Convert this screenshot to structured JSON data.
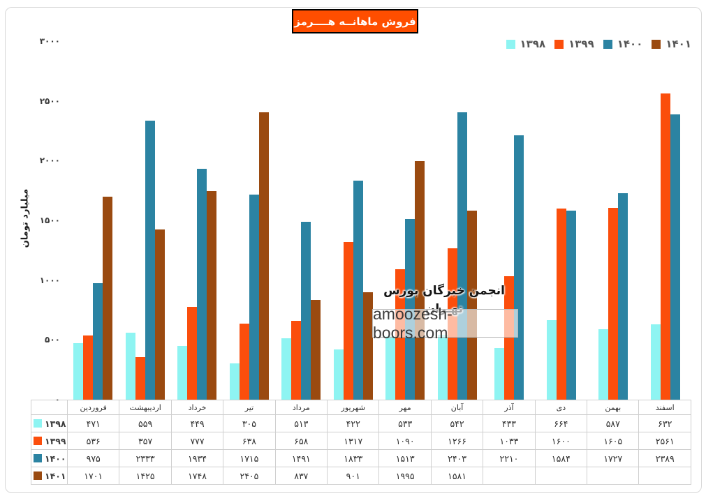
{
  "title": "فروش ماهانــه هــــرمز",
  "watermark": {
    "line1": "انجمن خبرگان بورس تهـران",
    "domain": "amoozesh-boors.com"
  },
  "y_axis": {
    "title": "میلیارد تومان"
  },
  "colors": {
    "title_bg": "#FF4E00",
    "series_1398": "#8EF4F2",
    "series_1399": "#FB4E0C",
    "series_1400": "#2B83A2",
    "series_1401": "#9A4A10",
    "table_border": "#cfcfcf"
  },
  "digits": "persian",
  "chart_data": {
    "type": "bar",
    "title": "فروش ماهانــه هــــرمز",
    "xlabel": "",
    "ylabel": "میلیارد تومان",
    "ylim": [
      0,
      3000
    ],
    "yticks": [
      0,
      500,
      1000,
      1500,
      2000,
      2500,
      3000
    ],
    "grid": false,
    "legend_position": "top-right",
    "categories": [
      "فروردین",
      "اردیبهشت",
      "خرداد",
      "تیر",
      "مرداد",
      "شهریور",
      "مهر",
      "آبان",
      "آذر",
      "دی",
      "بهمن",
      "اسفند"
    ],
    "series": [
      {
        "name": "1398",
        "color": "#8EF4F2",
        "values": [
          471,
          559,
          449,
          305,
          513,
          422,
          533,
          542,
          433,
          664,
          587,
          632
        ]
      },
      {
        "name": "1399",
        "color": "#FB4E0C",
        "values": [
          536,
          357,
          777,
          638,
          658,
          1317,
          1090,
          1266,
          1033,
          1600,
          1605,
          2561
        ]
      },
      {
        "name": "1400",
        "color": "#2B83A2",
        "values": [
          975,
          2333,
          1934,
          1715,
          1491,
          1833,
          1513,
          2403,
          2210,
          1584,
          1727,
          2389
        ]
      },
      {
        "name": "1401",
        "color": "#9A4A10",
        "values": [
          1701,
          1425,
          1748,
          2405,
          837,
          901,
          1995,
          1581,
          null,
          null,
          null,
          null
        ]
      }
    ]
  }
}
